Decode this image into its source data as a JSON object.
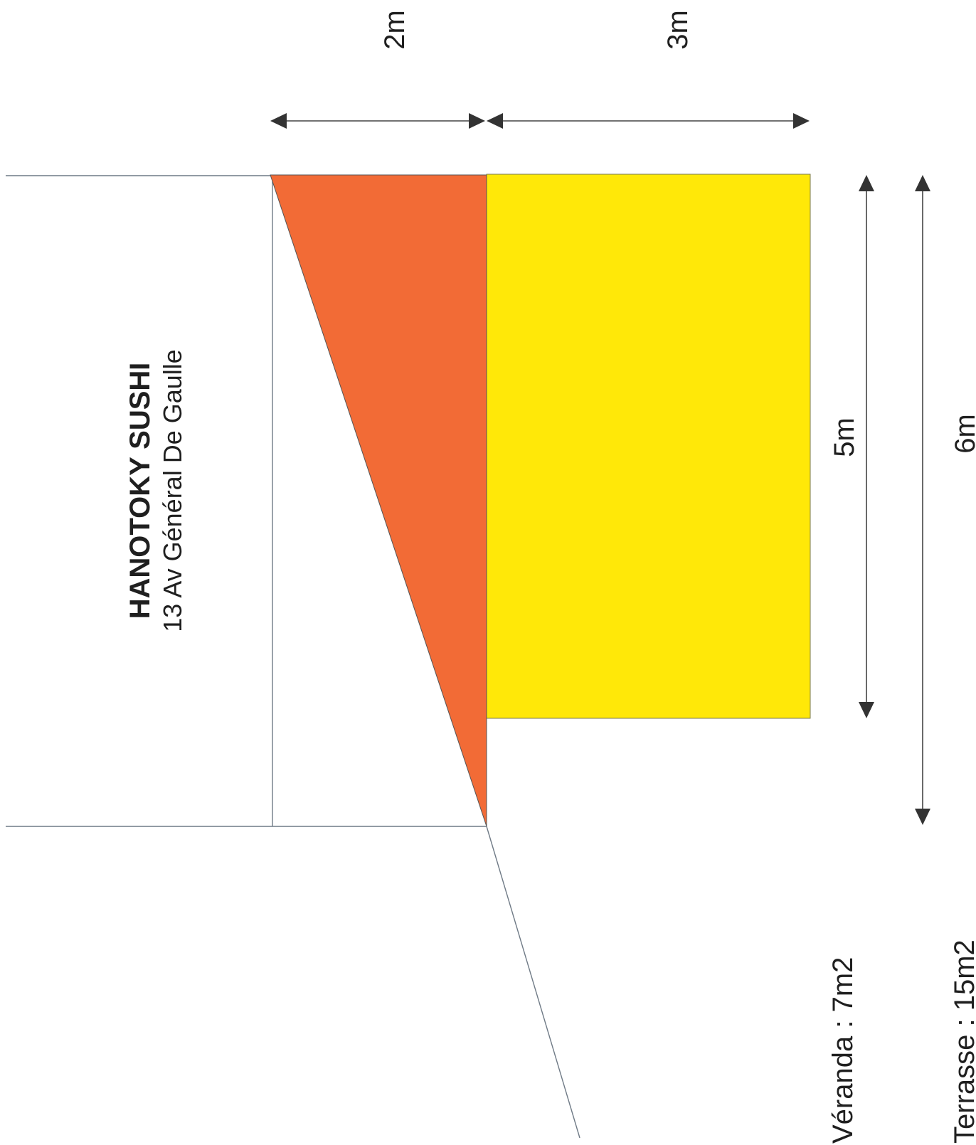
{
  "business": {
    "name": "HANOTOKY SUSHI",
    "address": "13 Av Général De Gaulle"
  },
  "dimensions": {
    "top_left": "2m",
    "top_right": "3m",
    "inner": "5m",
    "outer": "6m"
  },
  "areas": {
    "veranda": "Véranda : 7m2",
    "terrasse": "Terrasse : 15m2"
  },
  "colors": {
    "veranda_fill": "#f26b36",
    "terrasse_fill": "#ffe808",
    "outline": "#6f7a86",
    "arrow": "#333333"
  }
}
